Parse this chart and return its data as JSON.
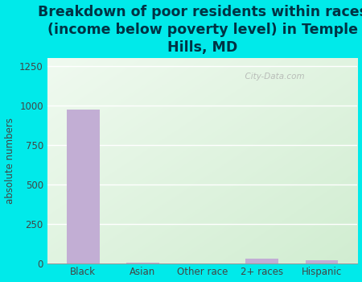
{
  "title": "Breakdown of poor residents within races\n(income below poverty level) in Temple\nHills, MD",
  "categories": [
    "Black",
    "Asian",
    "Other race",
    "2+ races",
    "Hispanic"
  ],
  "values": [
    975,
    5,
    0,
    30,
    20
  ],
  "bar_color": "#c2aed4",
  "ylabel": "absolute numbers",
  "ylim": [
    0,
    1300
  ],
  "yticks": [
    0,
    250,
    500,
    750,
    1000,
    1250
  ],
  "bg_outer": "#00eaea",
  "bg_plot_topleft": "#eaf4ea",
  "bg_plot_bottomright": "#d0ecd0",
  "watermark": "  City-Data.com",
  "title_fontsize": 12.5,
  "title_color": "#003344",
  "ylabel_fontsize": 8.5,
  "tick_fontsize": 8.5
}
